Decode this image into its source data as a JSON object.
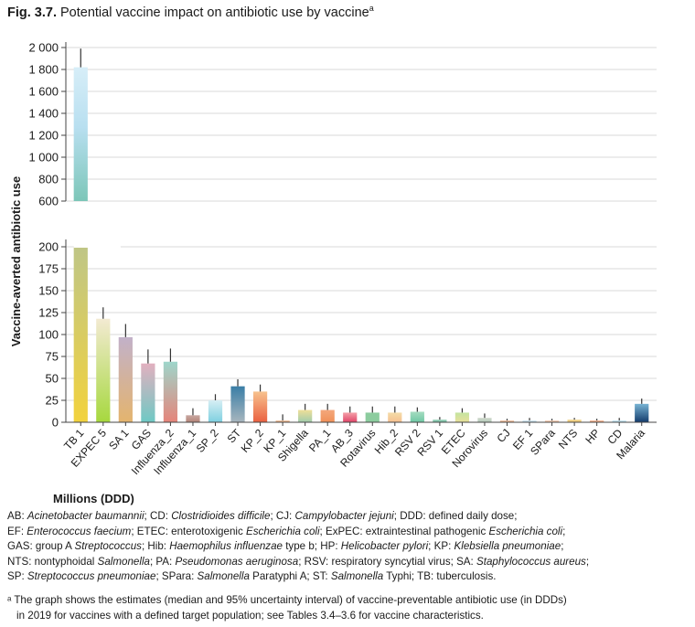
{
  "figure": {
    "label": "Fig. 3.7.",
    "title": "Potential vaccine impact on antibiotic use by vaccine",
    "title_sup": "a"
  },
  "chart_data": {
    "type": "bar",
    "title": "Potential vaccine impact on antibiotic use by vaccine",
    "ylabel": "Vaccine-averted antibiotic use",
    "xlabel": "Millions (DDD)",
    "broken_axis": true,
    "upper_ylim": [
      600,
      2000
    ],
    "upper_ticks": [
      "600",
      "800",
      "1 000",
      "1 200",
      "1 400",
      "1 600",
      "1 800",
      "2 000"
    ],
    "lower_ylim": [
      0,
      200
    ],
    "lower_ticks": [
      "0",
      "25",
      "50",
      "75",
      "100",
      "125",
      "150",
      "175",
      "200"
    ],
    "categories": [
      "TB 1",
      "EXPEC 5",
      "SA 1",
      "GAS",
      "Influenza_2",
      "Influenza_1",
      "SP_2",
      "ST",
      "KP_2",
      "KP_1",
      "Shigella",
      "PA_1",
      "AB_3",
      "Rotavirus",
      "Hib_2",
      "RSV 2",
      "RSV 1",
      "ETEC",
      "Norovirus",
      "CJ",
      "EF 1",
      "SPara",
      "NTS",
      "HP",
      "CD",
      "Malaria"
    ],
    "values": [
      1820,
      118,
      97,
      67,
      69,
      8,
      25,
      41,
      35,
      2,
      14,
      14,
      11,
      11,
      11,
      12,
      3,
      11,
      5,
      2,
      2,
      2,
      3,
      2,
      2,
      21
    ],
    "upper_error": [
      1990,
      131,
      112,
      83,
      84,
      16,
      32,
      49,
      43,
      9,
      21,
      21,
      18,
      18,
      18,
      17,
      6,
      16,
      10,
      4,
      5,
      4,
      5,
      4,
      5,
      27
    ],
    "colors": [
      [
        "#f2d23e",
        "#bfc686"
      ],
      [
        "#a6d83e",
        "#f3ead2"
      ],
      [
        "#e4b46e",
        "#c2b1c9"
      ],
      [
        "#6ec9c4",
        "#e2b0bf"
      ],
      [
        "#e6847a",
        "#9ed6cb"
      ],
      [
        "#b48478",
        "#c8a8a2"
      ],
      [
        "#7ed0e0",
        "#d6eef4"
      ],
      [
        "#a8b6be",
        "#3a7ea6"
      ],
      [
        "#ea6040",
        "#f7c28e"
      ],
      [
        "#e8a070",
        "#f0c7a4"
      ],
      [
        "#a0ccac",
        "#f0df98"
      ],
      [
        "#f09058",
        "#f4a87c"
      ],
      [
        "#e04468",
        "#f4a0a8"
      ],
      [
        "#8ccc9e",
        "#8ccc9e"
      ],
      [
        "#f6c090",
        "#f4dca8"
      ],
      [
        "#6ec8a4",
        "#a6dcc0"
      ],
      [
        "#6ebca2",
        "#a0d4bc"
      ],
      [
        "#e8e09a",
        "#c4e4a0"
      ],
      [
        "#b4ccba",
        "#d0d8cc"
      ],
      [
        "#ecac82",
        "#f0c4a8"
      ],
      [
        "#b8d8e8",
        "#d4e8f0"
      ],
      [
        "#f0c0a0",
        "#f4d0b8"
      ],
      [
        "#f4c86e",
        "#f0d894"
      ],
      [
        "#f0a078",
        "#f4b898"
      ],
      [
        "#b0dcec",
        "#c8e4f0"
      ],
      [
        "#143c6c",
        "#78b4d4"
      ]
    ]
  },
  "footnotes": {
    "abbrev": [
      [
        [
          "AB: ",
          ""
        ],
        [
          "Acinetobacter baumannii",
          "i"
        ],
        [
          "; CD: ",
          ""
        ],
        [
          "Clostridioides difficile",
          "i"
        ],
        [
          "; CJ: ",
          ""
        ],
        [
          "Campylobacter jejuni",
          "i"
        ],
        [
          "; DDD: defined daily dose;",
          ""
        ]
      ],
      [
        [
          "EF: ",
          ""
        ],
        [
          "Enterococcus faecium",
          "i"
        ],
        [
          "; ETEC: enterotoxigenic ",
          ""
        ],
        [
          "Escherichia coli",
          "i"
        ],
        [
          "; ExPEC: extraintestinal pathogenic ",
          ""
        ],
        [
          "Escherichia coli",
          "i"
        ],
        [
          ";",
          ""
        ]
      ],
      [
        [
          "GAS: group A ",
          ""
        ],
        [
          "Streptococcus",
          "i"
        ],
        [
          "; Hib: ",
          ""
        ],
        [
          "Haemophilus influenzae",
          "i"
        ],
        [
          " type b; HP: ",
          ""
        ],
        [
          "Helicobacter pylori",
          "i"
        ],
        [
          "; KP: ",
          ""
        ],
        [
          "Klebsiella pneumoniae",
          "i"
        ],
        [
          ";",
          ""
        ]
      ],
      [
        [
          "NTS: nontyphoidal ",
          ""
        ],
        [
          "Salmonella",
          "i"
        ],
        [
          "; PA: ",
          ""
        ],
        [
          "Pseudomonas aeruginosa",
          "i"
        ],
        [
          "; RSV: respiratory syncytial virus; SA: ",
          ""
        ],
        [
          "Staphylococcus aureus",
          "i"
        ],
        [
          ";",
          ""
        ]
      ],
      [
        [
          "SP: ",
          ""
        ],
        [
          "Streptococcus pneumoniae",
          "i"
        ],
        [
          "; SPara: ",
          ""
        ],
        [
          "Salmonella",
          "i"
        ],
        [
          " Paratyphi A; ST: ",
          ""
        ],
        [
          "Salmonella",
          "i"
        ],
        [
          " Typhi; TB: tuberculosis.",
          ""
        ]
      ]
    ],
    "note_line1": "ᵃ The graph shows the estimates (median and 95% uncertainty interval) of vaccine-preventable antibiotic use (in DDDs)",
    "note_line2": "in 2019 for vaccines with a defined target population; see Tables 3.4–3.6 for vaccine characteristics."
  }
}
